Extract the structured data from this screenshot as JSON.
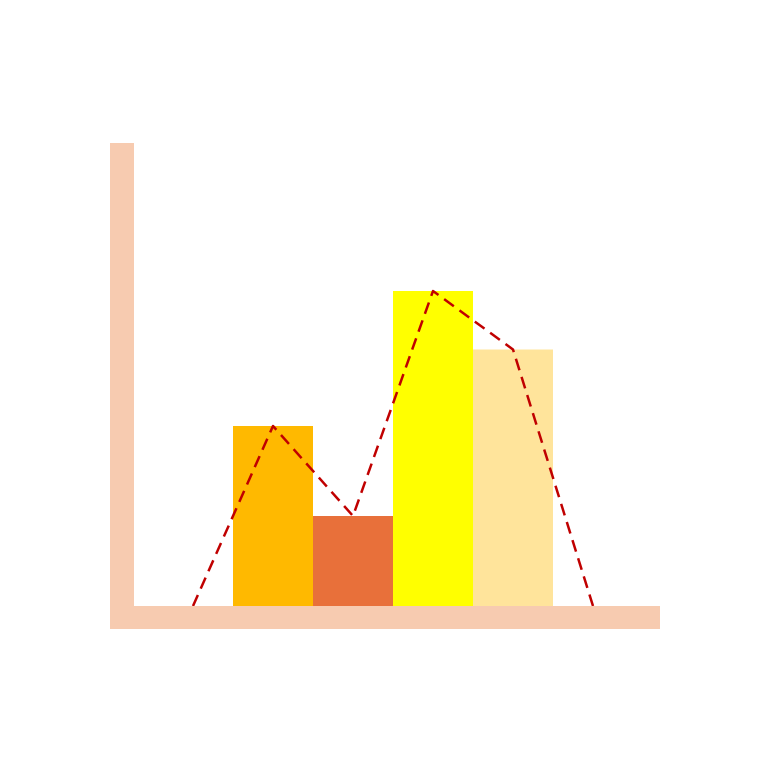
{
  "chart_data": {
    "type": "bar",
    "title": "",
    "xlabel": "",
    "ylabel": "",
    "categories": [
      "",
      "",
      "",
      ""
    ],
    "values": [
      2.0,
      1.0,
      3.5,
      2.85
    ],
    "bar_colors": [
      "#FFB900",
      "#E8703A",
      "#FFFF00",
      "#FFE49B"
    ],
    "overlay_line": {
      "style": "dashed",
      "color": "#C00000",
      "x": [
        -1,
        0,
        1,
        2,
        3,
        4
      ],
      "values": [
        0,
        2.0,
        1.0,
        3.5,
        2.85,
        0
      ]
    },
    "ylim": [
      0,
      5.25
    ],
    "axis_color": "#F7CBB0",
    "grid": false,
    "legend": "none"
  }
}
